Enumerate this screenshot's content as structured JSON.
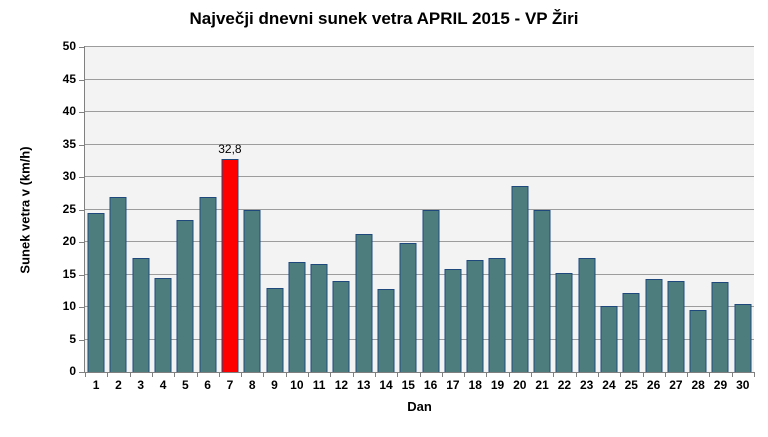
{
  "chart_data": {
    "type": "bar",
    "title": "Največji dnevni sunek vetra APRIL 2015 - VP Žiri",
    "xlabel": "Dan",
    "ylabel": "Sunek vetra v (km/h)",
    "categories": [
      "1",
      "2",
      "3",
      "4",
      "5",
      "6",
      "7",
      "8",
      "9",
      "10",
      "11",
      "12",
      "13",
      "14",
      "15",
      "16",
      "17",
      "18",
      "19",
      "20",
      "21",
      "22",
      "23",
      "24",
      "25",
      "26",
      "27",
      "28",
      "29",
      "30"
    ],
    "values": [
      24.5,
      27.0,
      17.6,
      14.4,
      23.4,
      27.0,
      32.8,
      25.0,
      13.0,
      16.9,
      16.6,
      14.0,
      21.2,
      12.7,
      19.9,
      25.0,
      15.8,
      17.3,
      17.6,
      28.6,
      24.9,
      15.2,
      17.6,
      10.2,
      12.2,
      14.3,
      14.0,
      9.5,
      13.8,
      10.5
    ],
    "ylim": [
      0,
      50
    ],
    "yticks": [
      0,
      5,
      10,
      15,
      20,
      25,
      30,
      35,
      40,
      45,
      50
    ],
    "grid": true,
    "legend_position": "none",
    "highlight": {
      "index": 6,
      "category": "7",
      "value": 32.8,
      "label": "32,8",
      "color": "#FF0000"
    },
    "colors": {
      "bar_fill": "#4D7D7D",
      "bar_border": "#1F497D",
      "highlight_fill": "#FF0000",
      "plot_bg": "#F3F3F3",
      "gridline": "#9C9C9C",
      "axis": "#808080",
      "text": "#000000",
      "background": "#FFFFFF"
    }
  }
}
